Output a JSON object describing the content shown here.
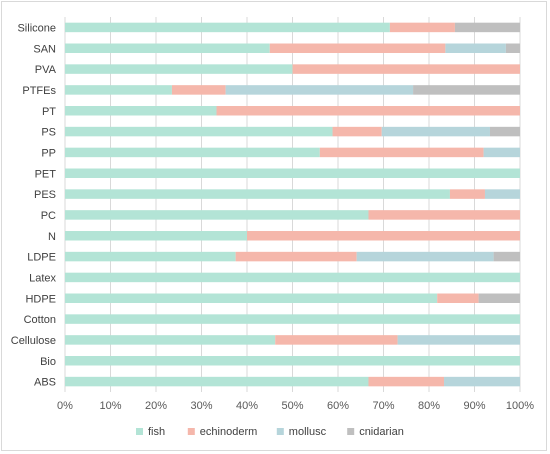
{
  "chart_data": {
    "type": "bar",
    "orientation": "horizontal",
    "stacked": "percent",
    "categories": [
      "Silicone",
      "SAN",
      "PVA",
      "PTFEs",
      "PT",
      "PS",
      "PP",
      "PET",
      "PES",
      "PC",
      "N",
      "LDPE",
      "Latex",
      "HDPE",
      "Cotton",
      "Cellulose",
      "Bio",
      "ABS"
    ],
    "series": [
      {
        "name": "fish",
        "color": "#b3e4d6",
        "values": [
          71.4,
          45.0,
          50.0,
          23.5,
          33.3,
          58.8,
          56.0,
          100,
          84.6,
          66.7,
          40.0,
          37.5,
          100,
          81.8,
          100,
          46.2,
          100,
          66.7
        ]
      },
      {
        "name": "echinoderm",
        "color": "#f5b7ab",
        "values": [
          14.3,
          38.6,
          50.0,
          11.8,
          66.7,
          10.8,
          36.0,
          0,
          7.7,
          33.3,
          60.0,
          26.6,
          0,
          9.1,
          0,
          26.9,
          0,
          16.6
        ]
      },
      {
        "name": "mollusc",
        "color": "#b6d5db",
        "values": [
          0,
          13.3,
          0,
          41.2,
          0,
          23.8,
          8.0,
          0,
          7.7,
          0,
          0,
          30.1,
          0,
          0,
          0,
          26.9,
          0,
          16.7
        ]
      },
      {
        "name": "cnidarian",
        "color": "#bfbfbf",
        "values": [
          14.3,
          3.1,
          0,
          23.5,
          0,
          6.6,
          0,
          0,
          0,
          0,
          0,
          5.8,
          0,
          9.1,
          0,
          0,
          0,
          0
        ]
      }
    ],
    "xlim": [
      0,
      100
    ],
    "xticks": [
      "0%",
      "10%",
      "20%",
      "30%",
      "40%",
      "50%",
      "60%",
      "70%",
      "80%",
      "90%",
      "100%"
    ],
    "grid": true,
    "legend": "bottom"
  }
}
